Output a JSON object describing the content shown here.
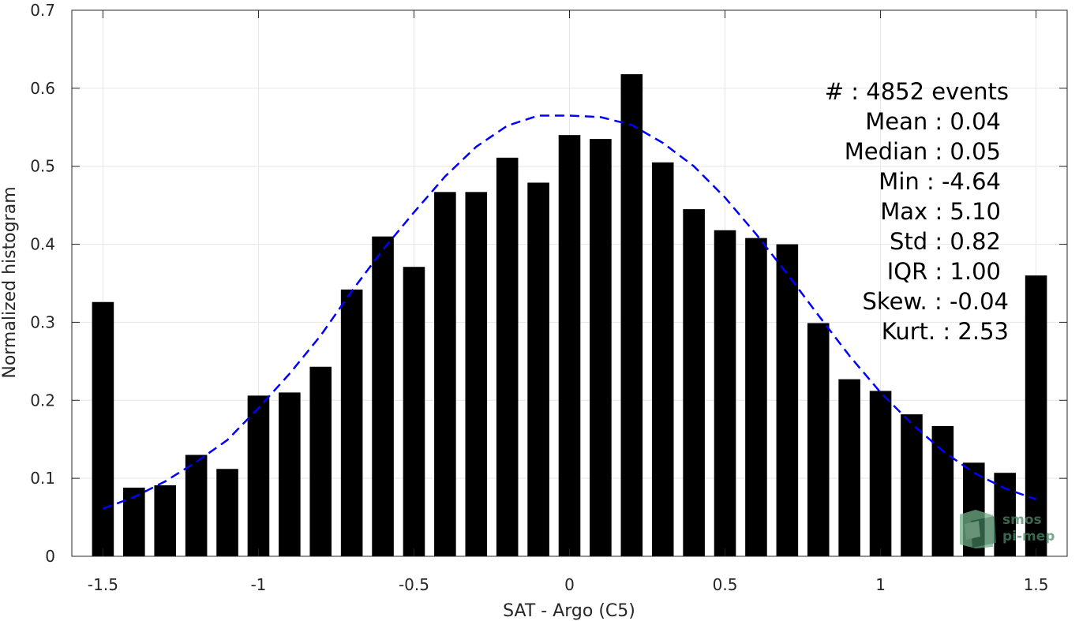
{
  "chart_data": {
    "type": "bar",
    "xlabel": "SAT - Argo (C5)",
    "ylabel": "Normalized histogram",
    "xlim": [
      -1.6,
      1.6
    ],
    "ylim": [
      0,
      0.7
    ],
    "grid": true,
    "x_ticks": [
      -1.5,
      -1,
      -0.5,
      0,
      0.5,
      1,
      1.5
    ],
    "x_tick_labels": [
      "-1.5",
      "-1",
      "-0.5",
      "0",
      "0.5",
      "1",
      "1.5"
    ],
    "y_ticks": [
      0,
      0.1,
      0.2,
      0.3,
      0.4,
      0.5,
      0.6,
      0.7
    ],
    "y_tick_labels": [
      "0",
      "0.1",
      "0.2",
      "0.3",
      "0.4",
      "0.5",
      "0.6",
      "0.7"
    ],
    "bar_color": "#000000",
    "fit_color": "#0000ff",
    "bars": {
      "x": [
        -1.5,
        -1.4,
        -1.3,
        -1.2,
        -1.1,
        -1.0,
        -0.9,
        -0.8,
        -0.7,
        -0.6,
        -0.5,
        -0.4,
        -0.3,
        -0.2,
        -0.1,
        0.0,
        0.1,
        0.2,
        0.3,
        0.4,
        0.5,
        0.6,
        0.7,
        0.8,
        0.9,
        1.0,
        1.1,
        1.2,
        1.3,
        1.4,
        1.5
      ],
      "values": [
        0.326,
        0.088,
        0.091,
        0.13,
        0.112,
        0.206,
        0.21,
        0.243,
        0.342,
        0.41,
        0.371,
        0.467,
        0.467,
        0.511,
        0.479,
        0.54,
        0.535,
        0.618,
        0.505,
        0.445,
        0.418,
        0.408,
        0.4,
        0.299,
        0.227,
        0.212,
        0.182,
        0.167,
        0.12,
        0.107,
        0.36
      ]
    },
    "fit": {
      "style": "dashed",
      "x": [
        -1.5,
        -1.4,
        -1.3,
        -1.2,
        -1.1,
        -1.0,
        -0.9,
        -0.8,
        -0.7,
        -0.6,
        -0.5,
        -0.4,
        -0.3,
        -0.2,
        -0.1,
        0.0,
        0.1,
        0.2,
        0.3,
        0.4,
        0.5,
        0.6,
        0.7,
        0.8,
        0.9,
        1.0,
        1.1,
        1.2,
        1.3,
        1.4,
        1.5
      ],
      "values": [
        0.061,
        0.076,
        0.096,
        0.121,
        0.149,
        0.19,
        0.234,
        0.283,
        0.34,
        0.393,
        0.441,
        0.487,
        0.525,
        0.552,
        0.565,
        0.565,
        0.563,
        0.553,
        0.53,
        0.5,
        0.46,
        0.413,
        0.362,
        0.309,
        0.257,
        0.21,
        0.17,
        0.135,
        0.107,
        0.087,
        0.073
      ]
    },
    "stats": [
      {
        "label": "#  : 4852 events"
      },
      {
        "label": "Mean : 0.04"
      },
      {
        "label": "Median : 0.05"
      },
      {
        "label": "Min : -4.64"
      },
      {
        "label": "Max : 5.10"
      },
      {
        "label": "Std : 0.82"
      },
      {
        "label": "IQR : 1.00"
      },
      {
        "label": "Skew. : -0.04"
      },
      {
        "label": "Kurt. : 2.53"
      }
    ]
  },
  "watermark": {
    "line1": "smos",
    "line2": "pi-mep",
    "color": "#4d8a68"
  }
}
